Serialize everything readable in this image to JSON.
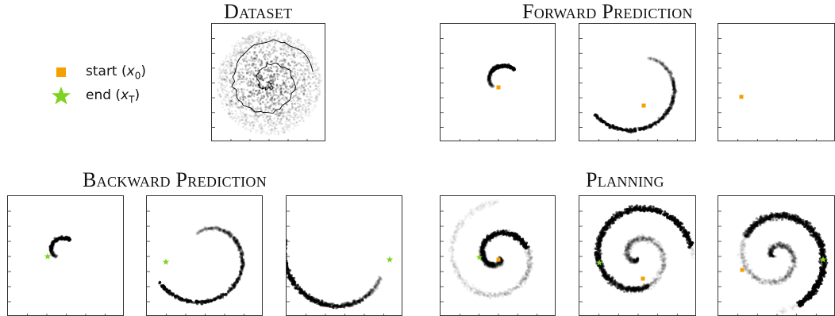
{
  "titles": {
    "dataset": "Dataset",
    "forward": "Forward Prediction",
    "backward": "Backward Prediction",
    "planning": "Planning"
  },
  "legend": {
    "start": {
      "text": "start (",
      "var": "x",
      "sub": "0",
      "close": ")",
      "color": "#f5a000",
      "marker": "square"
    },
    "end": {
      "text": "end (",
      "var": "x",
      "sub": "T",
      "close": ")",
      "color": "#7ed321",
      "marker": "star"
    }
  },
  "colors": {
    "start": "#f5a000",
    "end": "#7ed321",
    "ink": "#111111"
  }
}
